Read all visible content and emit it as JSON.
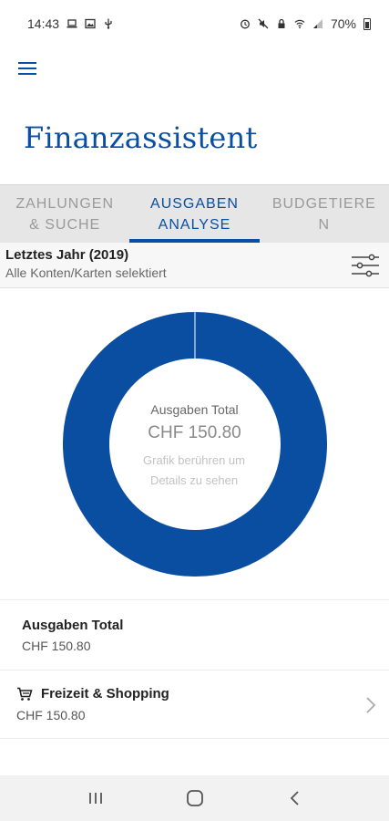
{
  "status_bar": {
    "time": "14:43",
    "battery": "70%",
    "left_icons": [
      "laptop-icon",
      "image-icon",
      "usb-icon"
    ],
    "right_icons": [
      "alarm-icon",
      "mute-icon",
      "lock-icon",
      "wifi-icon",
      "signal-icon",
      "battery-icon"
    ]
  },
  "header": {
    "title": "Finanzassistent",
    "menu_icon": "hamburger-menu-icon"
  },
  "tabs": [
    {
      "label": "ZAHLUNGEN\n& SUCHE",
      "active": false
    },
    {
      "label": "AUSGABEN\nANALYSE",
      "active": true
    },
    {
      "label": "BUDGETIERE\nN",
      "active": false
    }
  ],
  "filter": {
    "title": "Letztes Jahr (2019)",
    "subtitle": "Alle Konten/Karten selektiert",
    "icon": "sliders-icon"
  },
  "chart": {
    "center_label": "Ausgaben Total",
    "center_value": "CHF 150.80",
    "hint": "Grafik berühren um Details zu sehen"
  },
  "chart_data": {
    "type": "pie",
    "categories": [
      "Freizeit & Shopping"
    ],
    "values": [
      150.8
    ],
    "colors": [
      "#0a4ea1"
    ]
  },
  "summary": {
    "title": "Ausgaben Total",
    "value": "CHF 150.80"
  },
  "categories": [
    {
      "name": "Freizeit & Shopping",
      "value": "CHF 150.80",
      "icon": "shopping-cart-icon"
    }
  ],
  "colors": {
    "accent": "#0a4ea1",
    "tab_bg": "#e6e6e6"
  },
  "nav": [
    "recent-apps-icon",
    "home-icon",
    "back-icon"
  ]
}
